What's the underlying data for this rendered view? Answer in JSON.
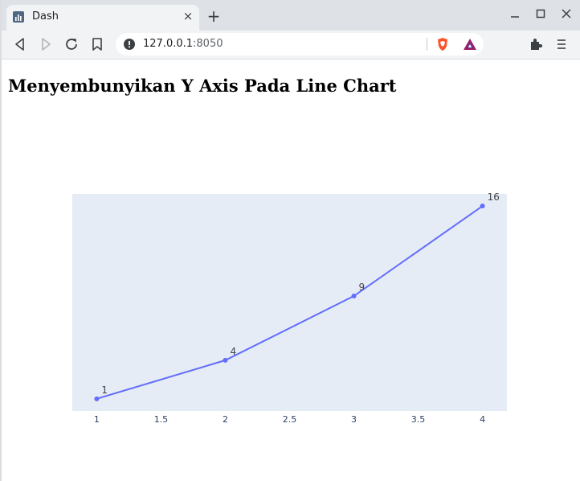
{
  "browser": {
    "tab_title": "Dash",
    "url_host": "127.0.0.1",
    "url_port": ":8050",
    "new_tab_symbol": "+",
    "close_tab_symbol": "×"
  },
  "page": {
    "heading": "Menyembunyikan Y Axis Pada Line Chart"
  },
  "colors": {
    "plot_bg": "#e5ecf6",
    "line": "#636efa",
    "tick_text": "#2a3f5f"
  },
  "chart_data": {
    "type": "line",
    "x": [
      1,
      2,
      3,
      4
    ],
    "y": [
      1,
      4,
      9,
      16
    ],
    "data_labels": [
      "1",
      "4",
      "9",
      "16"
    ],
    "x_ticks": [
      1,
      1.5,
      2,
      2.5,
      3,
      3.5,
      4
    ],
    "x_tick_labels": [
      "1",
      "1.5",
      "2",
      "2.5",
      "3",
      "3.5",
      "4"
    ],
    "xlim": [
      0.81,
      4.19
    ],
    "ylim": [
      0.05,
      16.95
    ],
    "y_axis_visible": false,
    "grid": false,
    "mode": "lines+markers+text"
  }
}
